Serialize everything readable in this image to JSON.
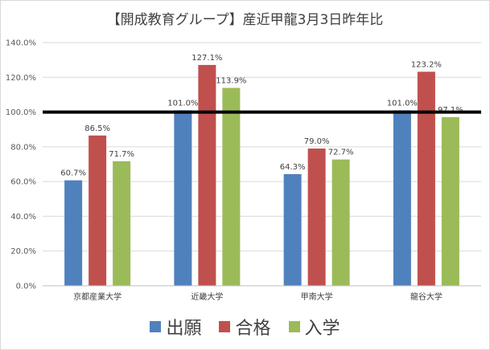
{
  "chart_data": {
    "type": "bar",
    "title": "【開成教育グループ】産近甲龍3月3日昨年比",
    "categories": [
      "京都産業大学",
      "近畿大学",
      "甲南大学",
      "龍谷大学"
    ],
    "series": [
      {
        "name": "出願",
        "color": "#4f81bd",
        "values": [
          60.7,
          101.0,
          64.3,
          101.0
        ]
      },
      {
        "name": "合格",
        "color": "#c0504d",
        "values": [
          86.5,
          127.1,
          79.0,
          123.2
        ]
      },
      {
        "name": "入学",
        "color": "#9bbb59",
        "values": [
          71.7,
          113.9,
          72.7,
          97.1
        ]
      }
    ],
    "data_labels": [
      [
        "60.7%",
        "101.0%",
        "64.3%",
        "101.0%"
      ],
      [
        "86.5%",
        "127.1%",
        "79.0%",
        "123.2%"
      ],
      [
        "71.7%",
        "113.9%",
        "72.7%",
        "97.1%"
      ]
    ],
    "y_ticks": [
      "0.0%",
      "20.0%",
      "40.0%",
      "60.0%",
      "80.0%",
      "100.0%",
      "120.0%",
      "140.0%"
    ],
    "ylim": [
      0,
      140
    ],
    "reference_line": 100,
    "grid": true,
    "legend_position": "bottom"
  }
}
